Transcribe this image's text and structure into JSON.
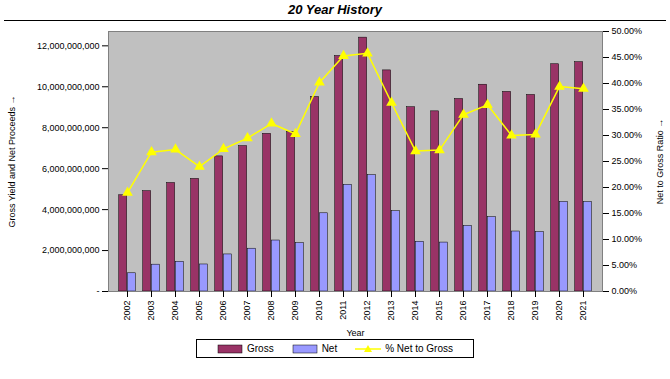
{
  "chart_data": {
    "type": "bar",
    "title": "20 Year History",
    "x_label": "Year",
    "y_label": "Gross Yield and Net Proceeds",
    "y2_label": "Net to Gross Ratio",
    "categories": [
      "2002",
      "2003",
      "2004",
      "2005",
      "2006",
      "2007",
      "2008",
      "2009",
      "2010",
      "2011",
      "2012",
      "2013",
      "2014",
      "2015",
      "2016",
      "2017",
      "2018",
      "2019",
      "2020",
      "2021"
    ],
    "series": [
      {
        "name": "Gross",
        "type": "bar",
        "color": "#993366",
        "values": [
          4700000000,
          4900000000,
          5300000000,
          5500000000,
          6600000000,
          7100000000,
          7700000000,
          7800000000,
          9500000000,
          11500000000,
          12400000000,
          10800000000,
          9000000000,
          8800000000,
          9400000000,
          10100000000,
          9750000000,
          9600000000,
          11100000000,
          11200000000
        ]
      },
      {
        "name": "Net",
        "type": "bar",
        "color": "#9999ff",
        "values": [
          890000000,
          1310000000,
          1450000000,
          1320000000,
          1810000000,
          2090000000,
          2490000000,
          2360000000,
          3820000000,
          5210000000,
          5680000000,
          3920000000,
          2430000000,
          2390000000,
          3200000000,
          3630000000,
          2930000000,
          2900000000,
          4370000000,
          4370000000
        ]
      },
      {
        "name": "% Net to Gross",
        "type": "line",
        "axis": "y2",
        "color": "#ffff00",
        "marker": "triangle",
        "values": [
          19,
          26.8,
          27.3,
          24,
          27.4,
          29.5,
          32.3,
          30.3,
          40.2,
          45.3,
          45.8,
          36.3,
          27,
          27.2,
          34,
          35.9,
          30,
          30.2,
          39.4,
          39
        ]
      }
    ],
    "ylim": [
      0,
      12700000000
    ],
    "yticks": [
      {
        "value": 0,
        "label": "-"
      },
      {
        "value": 2000000000,
        "label": "2,000,000,000"
      },
      {
        "value": 4000000000,
        "label": "4,000,000,000"
      },
      {
        "value": 6000000000,
        "label": "6,000,000,000"
      },
      {
        "value": 8000000000,
        "label": "8,000,000,000"
      },
      {
        "value": 10000000000,
        "label": "10,000,000,000"
      },
      {
        "value": 12000000000,
        "label": "12,000,000,000"
      }
    ],
    "y2lim": [
      0,
      50
    ],
    "y2ticks": [
      {
        "value": 0,
        "label": "0.00%"
      },
      {
        "value": 5,
        "label": "5.00%"
      },
      {
        "value": 10,
        "label": "10.00%"
      },
      {
        "value": 15,
        "label": "15.00%"
      },
      {
        "value": 20,
        "label": "20.00%"
      },
      {
        "value": 25,
        "label": "25.00%"
      },
      {
        "value": 30,
        "label": "30.00%"
      },
      {
        "value": 35,
        "label": "35.00%"
      },
      {
        "value": 40,
        "label": "40.00%"
      },
      {
        "value": 45,
        "label": "45.00%"
      },
      {
        "value": 50,
        "label": "50.00%"
      }
    ],
    "grid": false,
    "legend": "bottom"
  }
}
